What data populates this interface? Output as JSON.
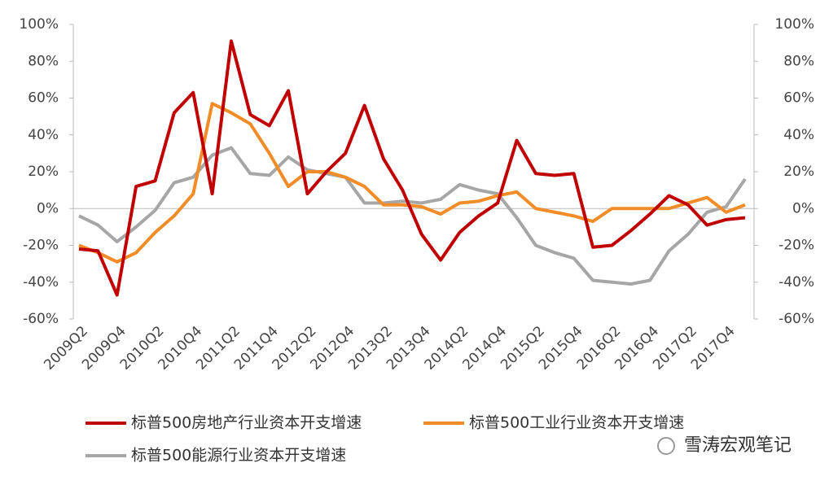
{
  "chart_data": {
    "type": "line",
    "categories": [
      "2009Q2",
      null,
      "2009Q4",
      null,
      "2010Q2",
      null,
      "2010Q4",
      null,
      "2011Q2",
      null,
      "2011Q4",
      null,
      "2012Q2",
      null,
      "2012Q4",
      null,
      "2013Q2",
      null,
      "2013Q4",
      null,
      "2014Q2",
      null,
      "2014Q4",
      null,
      "2015Q2",
      null,
      "2015Q4",
      null,
      "2016Q2",
      null,
      "2016Q4",
      null,
      "2017Q2",
      null,
      "2017Q4",
      null
    ],
    "series": [
      {
        "name": "标普500房地产行业资本开支增速",
        "color": "#c00000",
        "values": [
          -22,
          -23,
          -47,
          12,
          15,
          52,
          63,
          8,
          91,
          51,
          45,
          64,
          8,
          20,
          30,
          56,
          27,
          10,
          -14,
          -28,
          -13,
          -4,
          3,
          37,
          19,
          18,
          19,
          -21,
          -20,
          -12,
          -3,
          7,
          2,
          -9,
          -6,
          -5
        ]
      },
      {
        "name": "标普500工业行业资本开支增速",
        "color": "#f28c28",
        "values": [
          -20,
          -24,
          -29,
          -24,
          -13,
          -4,
          8,
          57,
          52,
          46,
          30,
          12,
          20,
          20,
          17,
          12,
          2,
          2,
          1,
          -3,
          3,
          4,
          7,
          9,
          0,
          -2,
          -4,
          -7,
          0,
          0,
          0,
          0,
          3,
          6,
          -2,
          2
        ]
      },
      {
        "name": "标普500能源行业资本开支增速",
        "color": "#a6a6a6",
        "axis": "y2",
        "values": [
          -4,
          -9,
          -18,
          -10,
          -1,
          14,
          17,
          29,
          33,
          19,
          18,
          28,
          21,
          19,
          17,
          3,
          3,
          4,
          3,
          5,
          13,
          10,
          8,
          -5,
          -20,
          -24,
          -27,
          -39,
          -40,
          -41,
          -39,
          -23,
          -14,
          -2,
          1,
          16
        ]
      }
    ],
    "ylim": [
      -60,
      100
    ],
    "yticks": [
      {
        "value": -60,
        "label": "-60%"
      },
      {
        "value": -40,
        "label": "-40%"
      },
      {
        "value": -20,
        "label": "-20%"
      },
      {
        "value": 0,
        "label": "0%"
      },
      {
        "value": 20,
        "label": "20%"
      },
      {
        "value": 40,
        "label": "40%"
      },
      {
        "value": 60,
        "label": "60%"
      },
      {
        "value": 80,
        "label": "80%"
      },
      {
        "value": 100,
        "label": "100%"
      }
    ],
    "y2lim": [
      -60,
      100
    ],
    "y2ticks": [
      {
        "value": -60,
        "label": "-60%"
      },
      {
        "value": -40,
        "label": "-40%"
      },
      {
        "value": -20,
        "label": "-20%"
      },
      {
        "value": 0,
        "label": "0%"
      },
      {
        "value": 20,
        "label": "20%"
      },
      {
        "value": 40,
        "label": "40%"
      },
      {
        "value": 60,
        "label": "60%"
      },
      {
        "value": 80,
        "label": "80%"
      },
      {
        "value": 100,
        "label": "100%"
      }
    ],
    "watermark": "雪涛宏观笔记"
  }
}
